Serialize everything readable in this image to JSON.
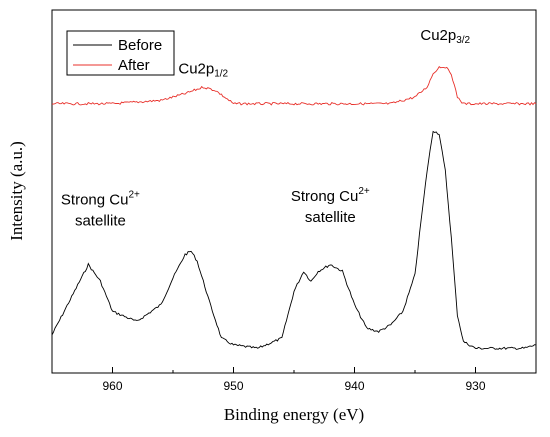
{
  "chart_data": {
    "type": "line",
    "title": "",
    "xlabel": "Binding energy (eV)",
    "ylabel": "Intensity (a.u.)",
    "x_reversed": true,
    "xlim": [
      965,
      925
    ],
    "ylim": [
      0,
      100
    ],
    "y_ticks_shown": false,
    "grid": false,
    "legend_position": "top-left",
    "x_ticks": [
      960,
      950,
      940,
      930
    ],
    "series": [
      {
        "name": "Before",
        "color": "#000000",
        "x": [
          965,
          963,
          962,
          961,
          960,
          958,
          956,
          955,
          954,
          953.5,
          953,
          952,
          951,
          950,
          948,
          946,
          945,
          944.2,
          943.6,
          943,
          942,
          941,
          940,
          939,
          938,
          937,
          936,
          935,
          934.5,
          934,
          933.5,
          933,
          932.5,
          932,
          931.5,
          931,
          930,
          928,
          926,
          925
        ],
        "y": [
          6,
          20,
          27,
          22,
          13,
          10,
          15,
          23,
          30,
          31,
          28,
          16,
          5,
          3,
          2,
          5,
          19,
          25,
          22,
          25,
          27,
          25,
          15,
          8,
          7,
          9,
          13,
          24,
          40,
          55,
          67,
          66,
          55,
          35,
          12,
          4,
          2,
          2,
          2,
          3
        ]
      },
      {
        "name": "After",
        "color": "#e8312b",
        "x": [
          965,
          960,
          956,
          954,
          952.5,
          951.5,
          950,
          945,
          940,
          937,
          935,
          934,
          933.5,
          933,
          932.5,
          932,
          931.5,
          931,
          930,
          928,
          925
        ],
        "y": [
          75,
          75,
          76,
          78,
          80,
          79,
          75,
          75,
          75,
          75,
          77,
          80,
          84,
          86,
          86,
          84,
          77,
          75,
          75,
          75,
          75
        ]
      }
    ],
    "annotations": [
      {
        "text": "Cu2p",
        "sub": "1/2",
        "sup": "",
        "line2": "",
        "at_x": 952.5,
        "at_y": 84
      },
      {
        "text": "Cu2p",
        "sub": "3/2",
        "sup": "",
        "line2": "",
        "at_x": 932.5,
        "at_y": 94
      },
      {
        "text": "Strong Cu",
        "sub": "",
        "sup": "2+",
        "line2": "satellite",
        "at_x": 961,
        "at_y": 45
      },
      {
        "text": "Strong Cu",
        "sub": "",
        "sup": "2+",
        "line2": "satellite",
        "at_x": 942,
        "at_y": 46
      }
    ]
  }
}
